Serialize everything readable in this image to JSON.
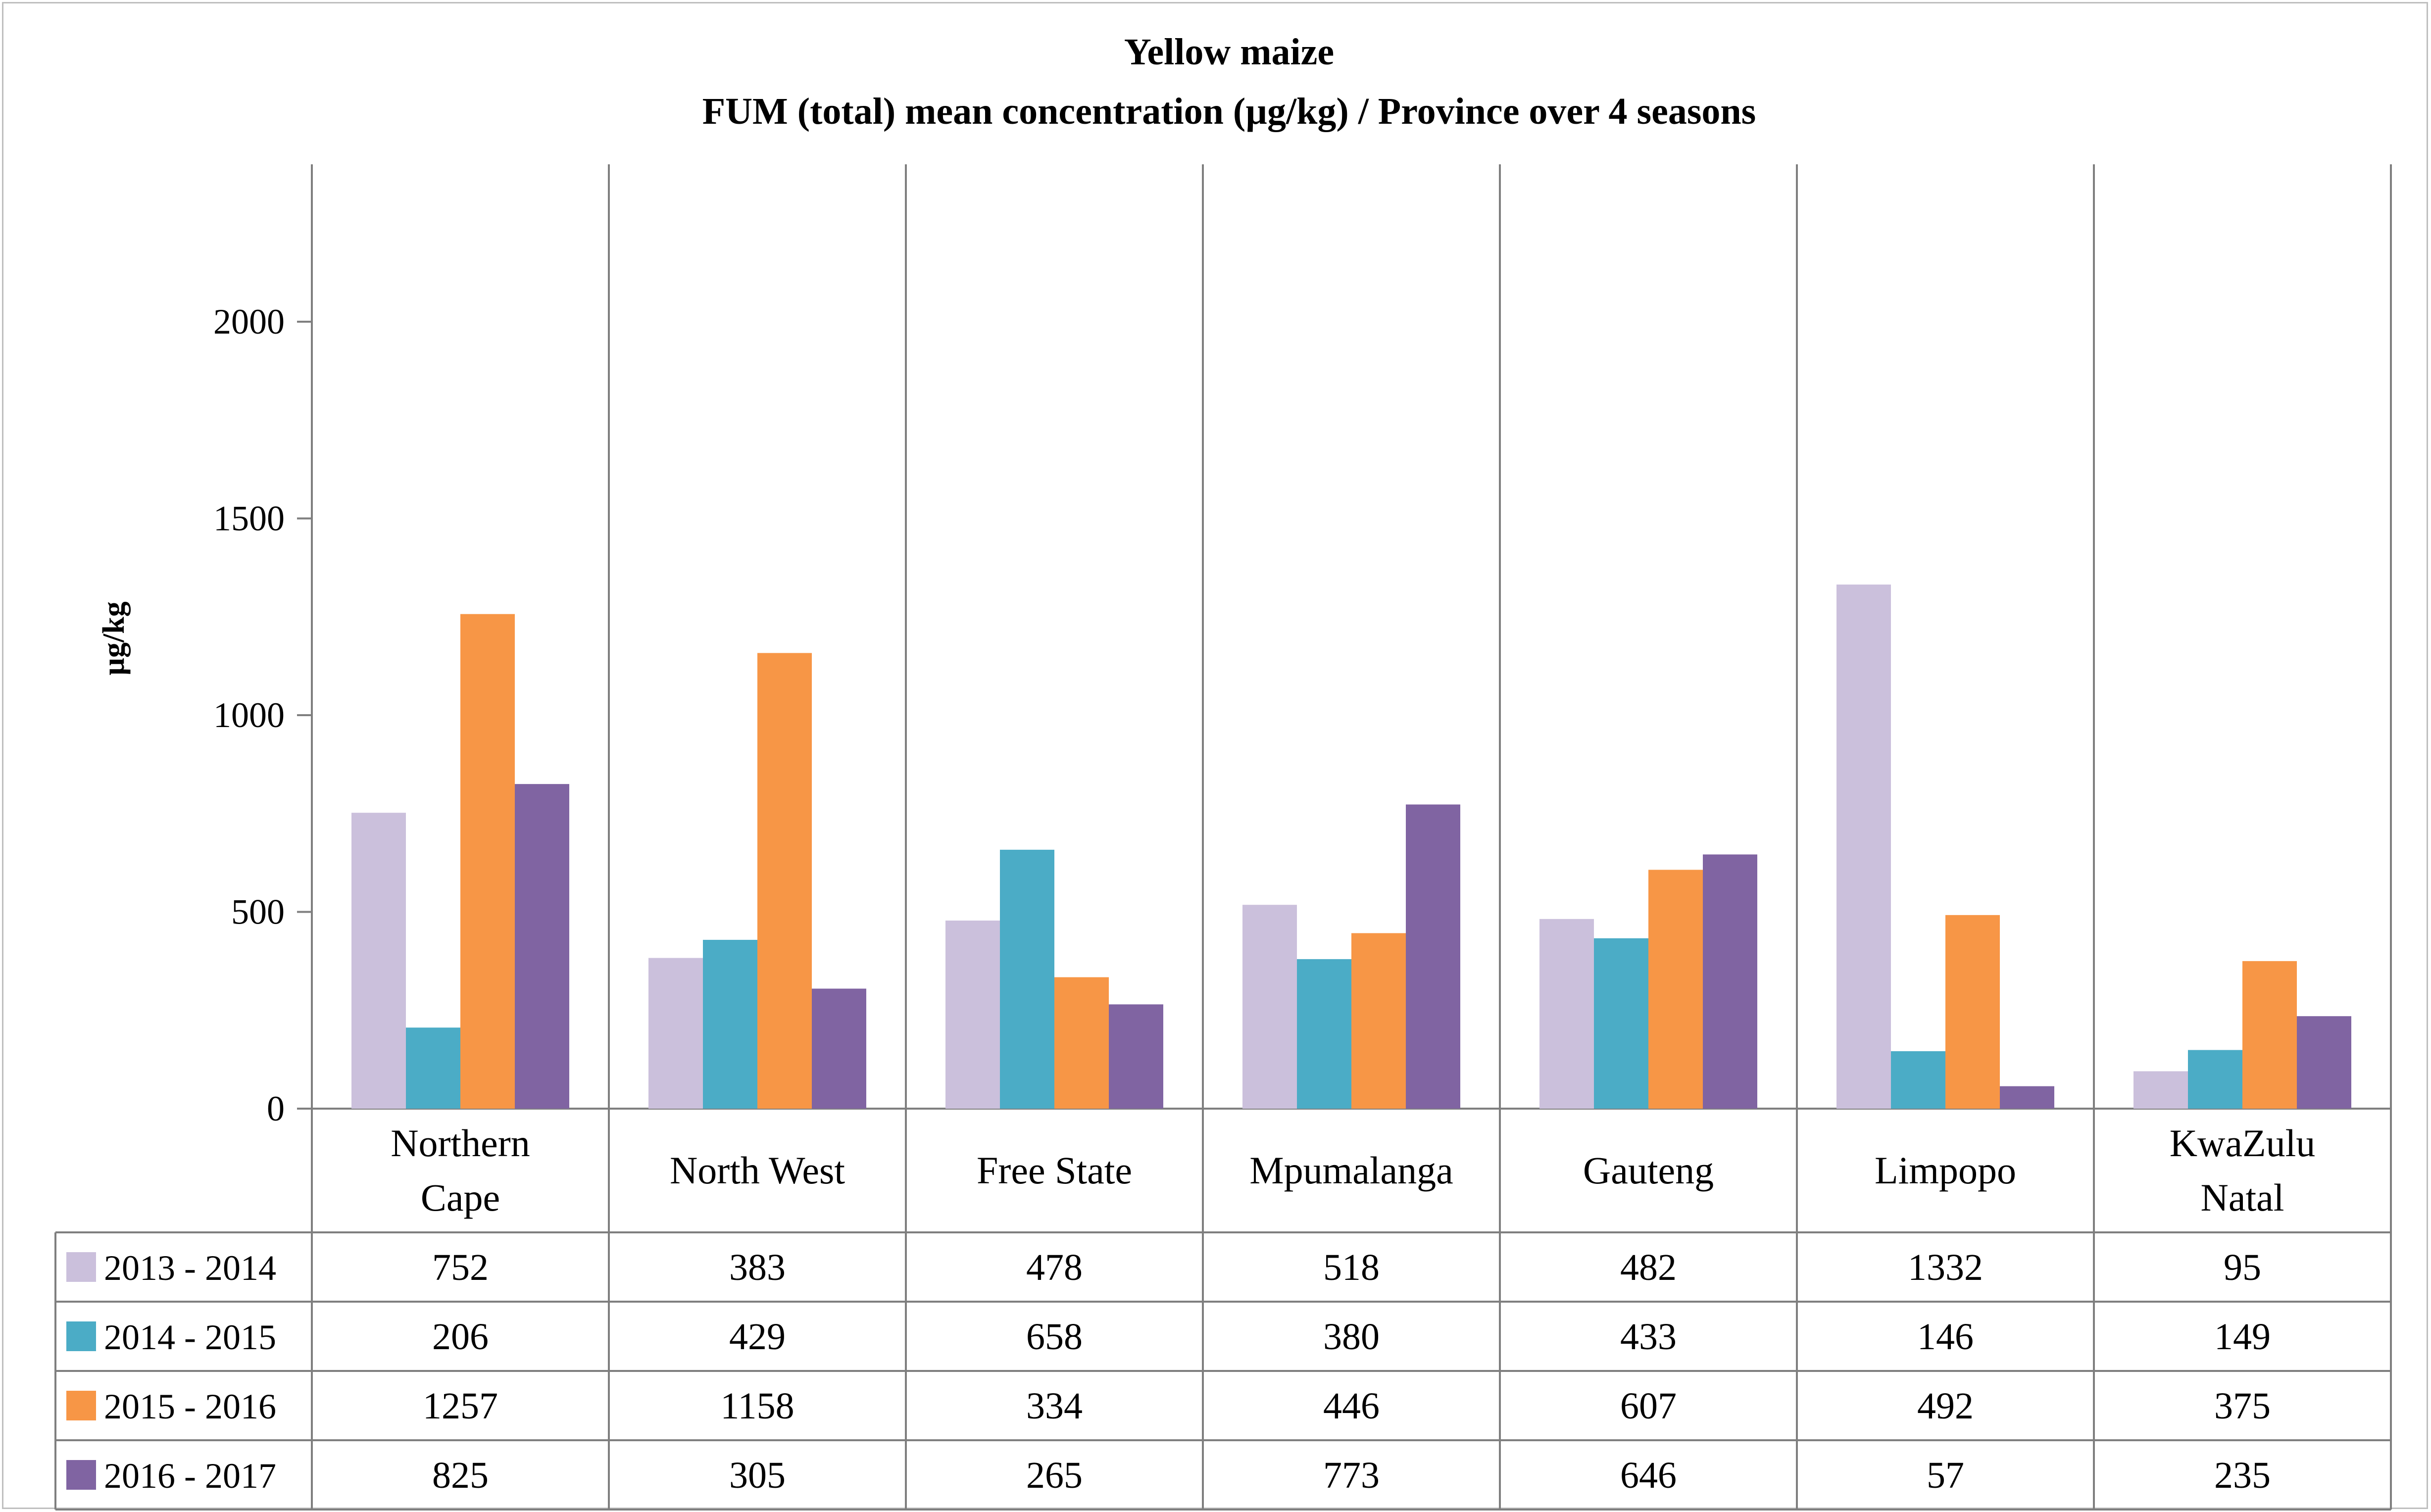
{
  "chart_data": {
    "type": "bar",
    "title": "Yellow maize",
    "subtitle": "FUM (total) mean concentration (µg/kg) / Province over 4 seasons",
    "xlabel": "",
    "ylabel": "µg/kg",
    "ylim": [
      0,
      2400
    ],
    "yticks": [
      0,
      500,
      1000,
      1500,
      2000
    ],
    "grid": false,
    "legend": "data-table",
    "categories": [
      [
        "Northern",
        "Cape"
      ],
      [
        "North West"
      ],
      [
        "Free State"
      ],
      [
        "Mpumalanga"
      ],
      [
        "Gauteng"
      ],
      [
        "Limpopo"
      ],
      [
        "KwaZulu",
        "Natal"
      ]
    ],
    "series": [
      {
        "name": "2013 - 2014",
        "color": "#cbc0dc",
        "values": [
          752,
          383,
          478,
          518,
          482,
          1332,
          95
        ]
      },
      {
        "name": "2014 - 2015",
        "color": "#4bacc6",
        "values": [
          206,
          429,
          658,
          380,
          433,
          146,
          149
        ]
      },
      {
        "name": "2015 - 2016",
        "color": "#f79646",
        "values": [
          1257,
          1158,
          334,
          446,
          607,
          492,
          375
        ]
      },
      {
        "name": "2016 - 2017",
        "color": "#8064a2",
        "values": [
          825,
          305,
          265,
          773,
          646,
          57,
          235
        ]
      }
    ]
  }
}
